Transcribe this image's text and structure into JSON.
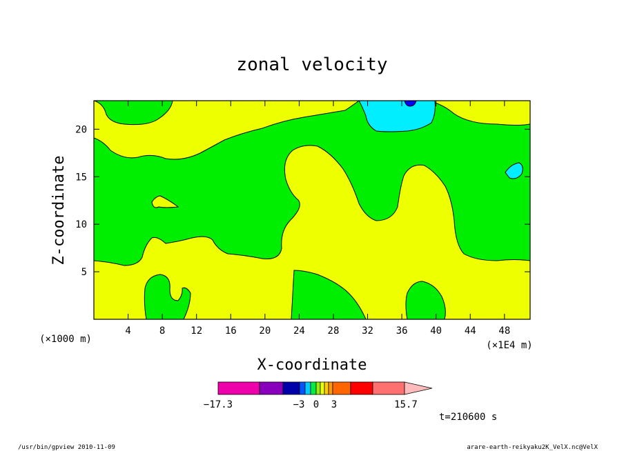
{
  "chart_data": {
    "type": "heatmap",
    "title": "zonal velocity",
    "xlabel": "X-coordinate",
    "ylabel": "Z-coordinate",
    "x_unit_left": "(×1000 m)",
    "x_unit_right": "(×1E4 m)",
    "xlim": [
      0,
      51
    ],
    "ylim": [
      0,
      23
    ],
    "x_ticks": [
      "4",
      "8",
      "12",
      "16",
      "20",
      "24",
      "28",
      "32",
      "36",
      "40",
      "44",
      "48"
    ],
    "y_ticks": [
      "5",
      "10",
      "15",
      "20"
    ],
    "time_label": "t=210600 s",
    "colorbar": {
      "tick_labels": [
        "−17.3",
        "−3",
        "0",
        "3",
        "15.7"
      ],
      "colors": [
        "#ee00aa",
        "#8800bb",
        "#0000aa",
        "#0055ff",
        "#00ccff",
        "#00ee44",
        "#99ee00",
        "#eeff00",
        "#ffcc00",
        "#ff9900",
        "#ff6600",
        "#ff0000",
        "#ff7070",
        "#ffbbbb"
      ]
    },
    "regions": [
      {
        "name": "top-left green patch",
        "color": "#00ee00"
      },
      {
        "name": "central green band",
        "color": "#00ee00"
      },
      {
        "name": "cyan negative cell",
        "color": "#00eeff"
      },
      {
        "name": "blue minimum",
        "color": "#0000ff"
      }
    ]
  },
  "footer": {
    "left": "/usr/bin/gpview  2010-11-09",
    "right": "arare-earth-reikyaku2K_VelX.nc@VelX"
  }
}
